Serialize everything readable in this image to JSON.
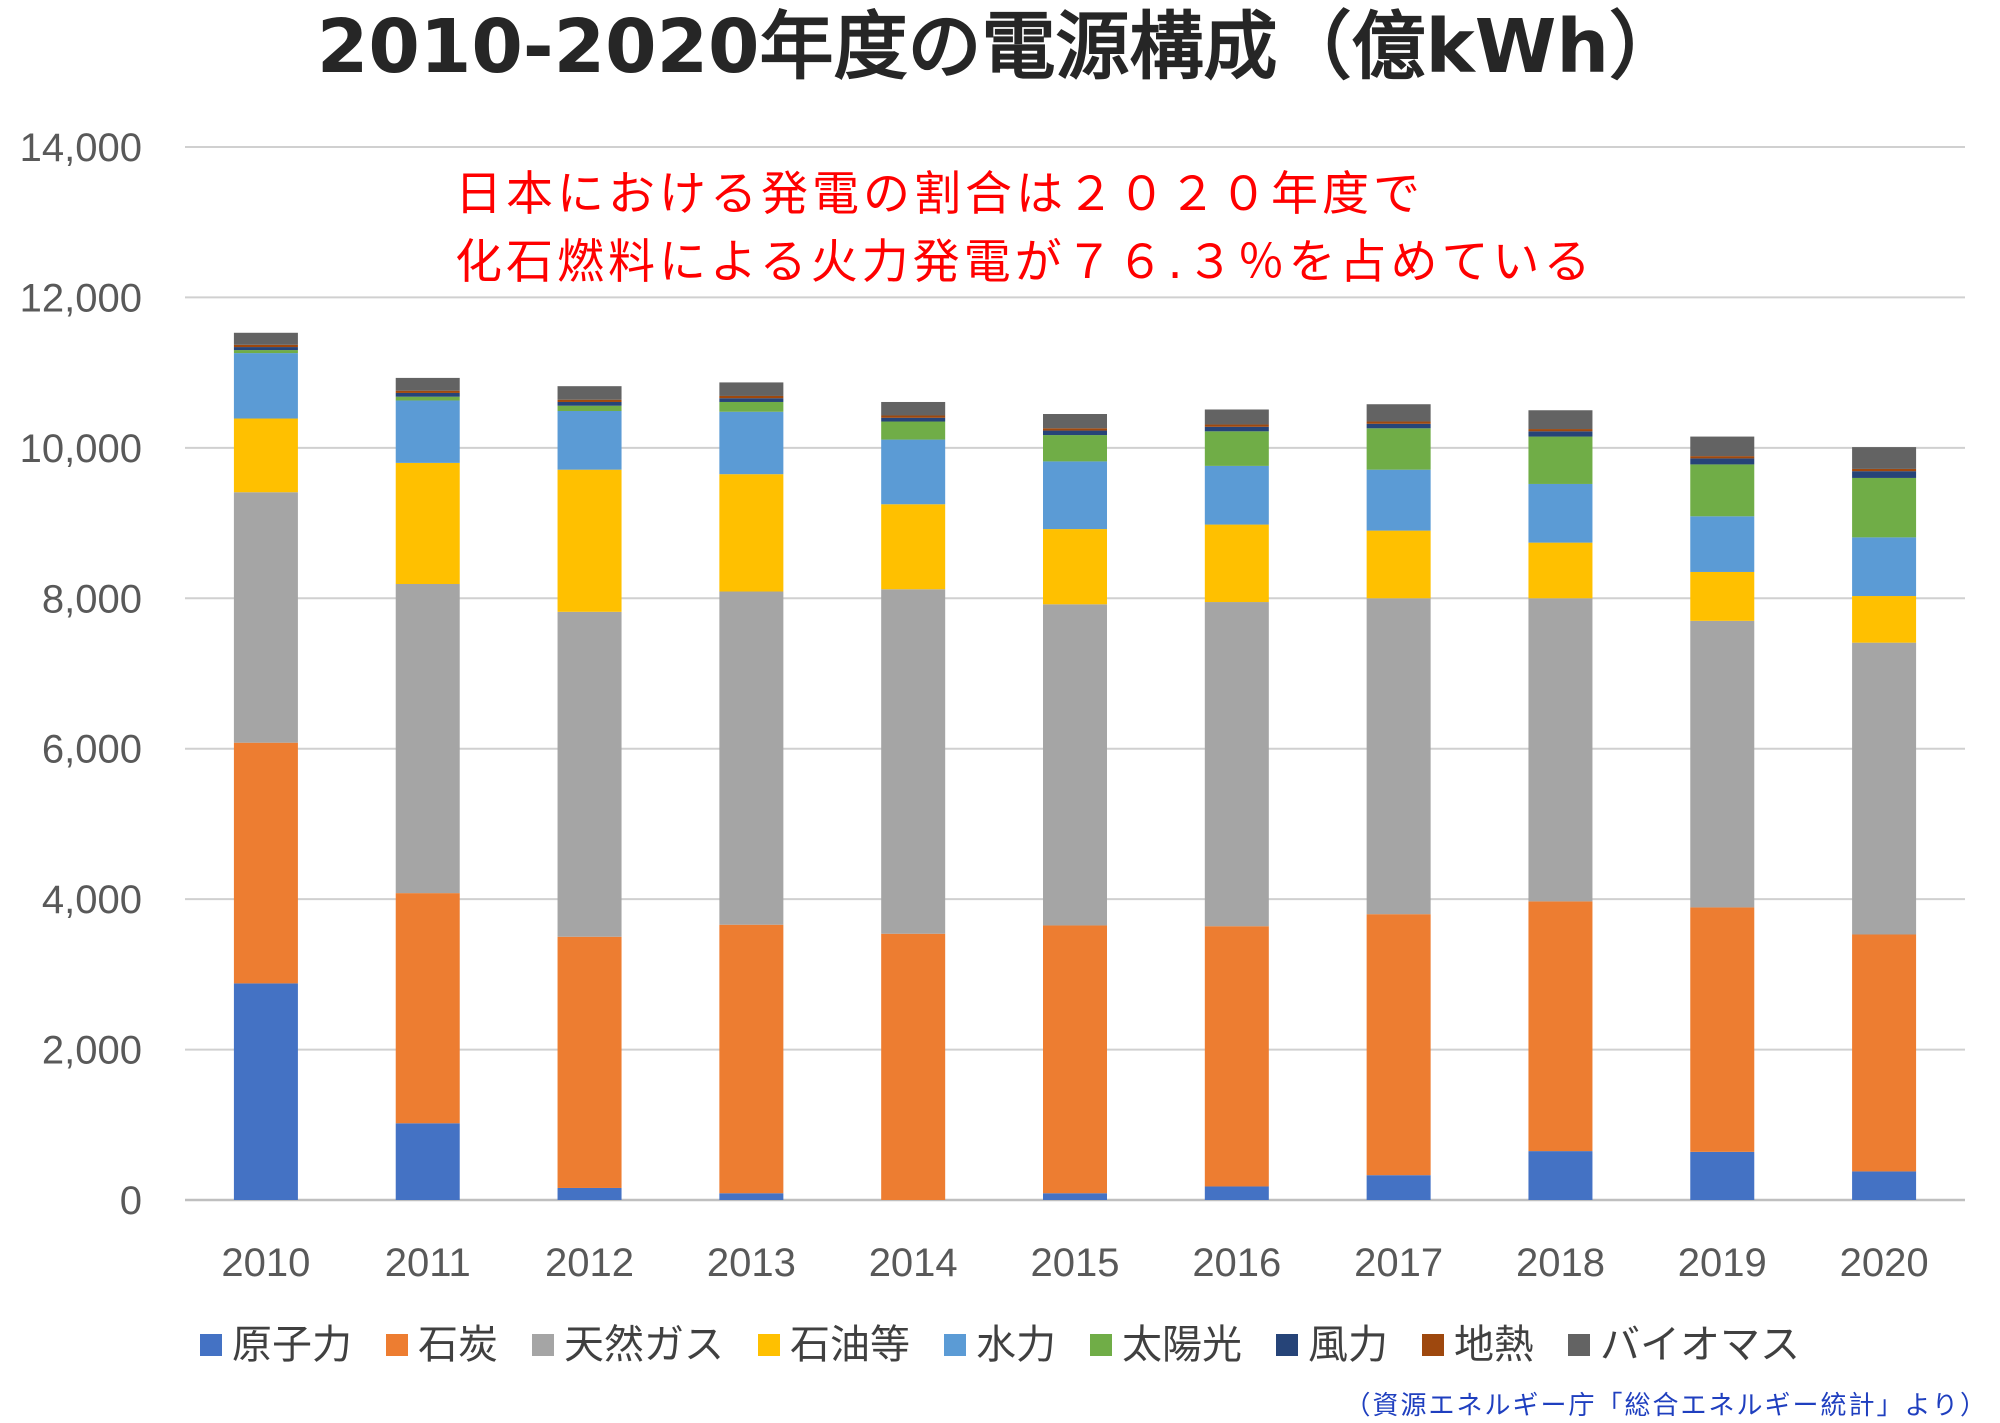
{
  "chart_data": {
    "type": "bar",
    "stacked": true,
    "title": "2010-2020年度の電源構成（億kWh）",
    "annotation": [
      "日本における発電の割合は２０２０年度で",
      "化石燃料による火力発電が７６.３％を占めている"
    ],
    "source": "（資源エネルギー庁「総合エネルギー統計」より）",
    "categories": [
      "2010",
      "2011",
      "2012",
      "2013",
      "2014",
      "2015",
      "2016",
      "2017",
      "2018",
      "2019",
      "2020"
    ],
    "ylim": [
      0,
      14000
    ],
    "yticks": [
      "0",
      "2,000",
      "4,000",
      "6,000",
      "8,000",
      "10,000",
      "12,000",
      "14,000"
    ],
    "ytick_values": [
      0,
      2000,
      4000,
      6000,
      8000,
      10000,
      12000,
      14000
    ],
    "grid": true,
    "legend_position": "bottom",
    "series": [
      {
        "name": "原子力",
        "color": "#4472c4",
        "values": [
          2880,
          1020,
          160,
          90,
          0,
          90,
          180,
          330,
          650,
          640,
          380
        ]
      },
      {
        "name": "石炭",
        "color": "#ed7d31",
        "values": [
          3200,
          3060,
          3340,
          3570,
          3540,
          3560,
          3460,
          3470,
          3320,
          3250,
          3150
        ]
      },
      {
        "name": "天然ガス",
        "color": "#a5a5a5",
        "values": [
          3330,
          4110,
          4320,
          4430,
          4580,
          4270,
          4310,
          4200,
          4030,
          3810,
          3880
        ]
      },
      {
        "name": "石油等",
        "color": "#ffc000",
        "values": [
          980,
          1610,
          1890,
          1560,
          1130,
          1000,
          1030,
          900,
          740,
          650,
          620
        ]
      },
      {
        "name": "水力",
        "color": "#5b9bd5",
        "values": [
          870,
          830,
          780,
          830,
          860,
          900,
          780,
          810,
          780,
          740,
          780
        ]
      },
      {
        "name": "太陽光",
        "color": "#70ad47",
        "values": [
          40,
          50,
          70,
          130,
          240,
          350,
          460,
          550,
          630,
          690,
          790
        ]
      },
      {
        "name": "風力",
        "color": "#264478",
        "values": [
          40,
          50,
          50,
          50,
          50,
          60,
          60,
          60,
          70,
          80,
          90
        ]
      },
      {
        "name": "地熱",
        "color": "#9e480e",
        "values": [
          30,
          30,
          30,
          30,
          30,
          30,
          30,
          30,
          30,
          30,
          30
        ]
      },
      {
        "name": "バイオマス",
        "color": "#636363",
        "values": [
          160,
          170,
          180,
          180,
          180,
          190,
          200,
          230,
          250,
          260,
          290
        ]
      }
    ]
  }
}
